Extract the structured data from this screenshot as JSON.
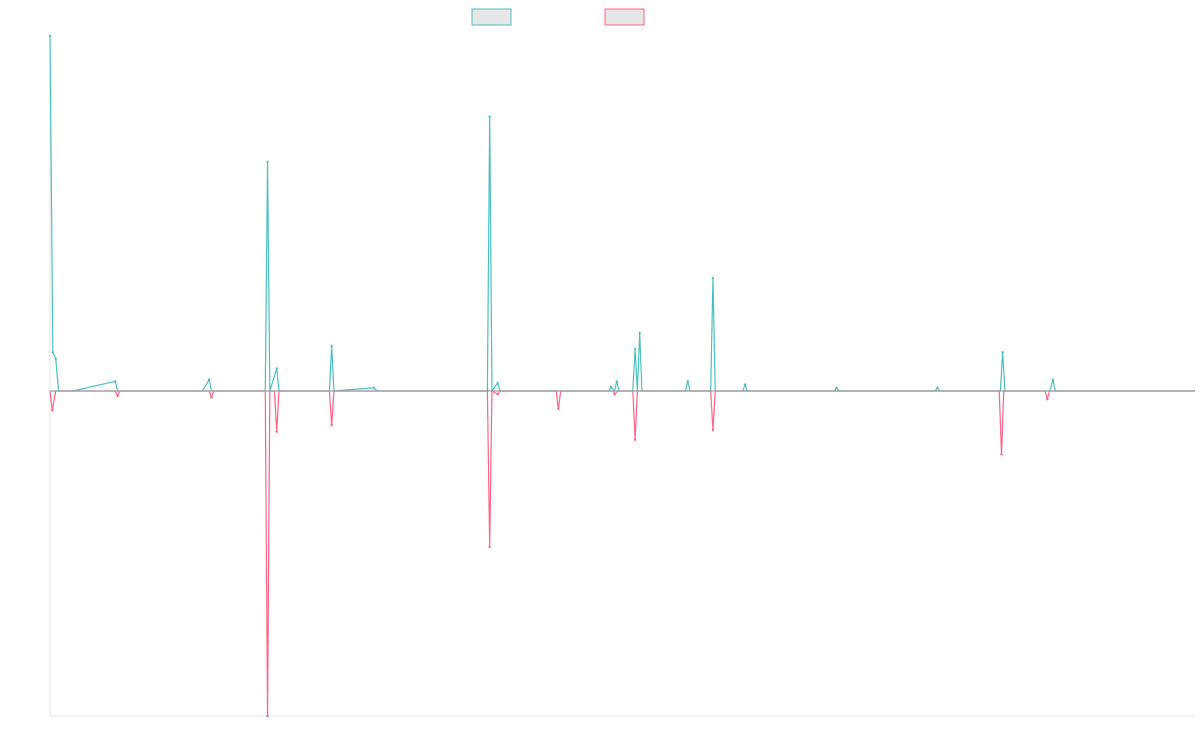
{
  "colors": {
    "series_1": "#4bc0c0",
    "series_2": "#ff6384",
    "legend_fill": "#e6e6e6",
    "axis": "#e5e5e5",
    "baseline": "#9aa0a6",
    "background": "#ffffff"
  },
  "legend": {
    "placement": "top-center",
    "items": [
      {
        "series_index": 0
      },
      {
        "series_index": 1
      }
    ]
  },
  "chart_data": {
    "type": "line",
    "title": "",
    "xlabel": "",
    "ylabel": "",
    "grid": false,
    "ticks_visible": false,
    "xlim": [
      0,
      100
    ],
    "ylim": [
      -100,
      100
    ],
    "series": [
      {
        "points": [
          [
            0,
            110
          ],
          [
            0.25,
            12
          ],
          [
            0.5,
            10
          ],
          [
            0.75,
            0
          ],
          [
            2,
            0
          ],
          [
            5.7,
            3
          ],
          [
            5.9,
            0
          ],
          [
            13.3,
            0
          ],
          [
            13.9,
            3.5
          ],
          [
            14.1,
            0
          ],
          [
            18.8,
            0
          ],
          [
            19.0,
            71
          ],
          [
            19.2,
            0
          ],
          [
            19.8,
            7
          ],
          [
            20.0,
            0
          ],
          [
            24.4,
            0
          ],
          [
            24.6,
            14
          ],
          [
            24.8,
            0
          ],
          [
            28.3,
            1
          ],
          [
            28.6,
            0
          ],
          [
            38.2,
            0
          ],
          [
            38.4,
            85
          ],
          [
            38.6,
            0
          ],
          [
            39.1,
            2.5
          ],
          [
            39.3,
            0
          ],
          [
            48.8,
            0
          ],
          [
            49.0,
            1.2
          ],
          [
            49.3,
            0
          ],
          [
            49.5,
            3
          ],
          [
            49.7,
            0
          ],
          [
            50.9,
            0
          ],
          [
            51.1,
            13
          ],
          [
            51.3,
            0
          ],
          [
            51.5,
            18
          ],
          [
            51.7,
            0
          ],
          [
            55.5,
            0
          ],
          [
            55.7,
            3
          ],
          [
            55.9,
            0
          ],
          [
            57.7,
            0
          ],
          [
            57.9,
            35
          ],
          [
            58.1,
            0
          ],
          [
            60.5,
            0
          ],
          [
            60.7,
            2
          ],
          [
            60.9,
            0
          ],
          [
            68.5,
            0
          ],
          [
            68.7,
            1
          ],
          [
            68.9,
            0
          ],
          [
            77.3,
            0
          ],
          [
            77.5,
            1
          ],
          [
            77.7,
            0
          ],
          [
            83.0,
            0
          ],
          [
            83.2,
            12
          ],
          [
            83.4,
            0
          ],
          [
            87.3,
            0
          ],
          [
            87.6,
            3.5
          ],
          [
            87.8,
            0
          ],
          [
            100,
            0
          ]
        ]
      },
      {
        "points": [
          [
            0,
            0
          ],
          [
            0.2,
            -6
          ],
          [
            0.5,
            0
          ],
          [
            5.7,
            0
          ],
          [
            5.9,
            -1.5
          ],
          [
            6.1,
            0
          ],
          [
            13.9,
            0
          ],
          [
            14.1,
            -2
          ],
          [
            14.3,
            0
          ],
          [
            18.8,
            0
          ],
          [
            19.0,
            -100
          ],
          [
            19.2,
            0
          ],
          [
            19.6,
            0
          ],
          [
            19.8,
            -12.5
          ],
          [
            20.0,
            0
          ],
          [
            24.4,
            0
          ],
          [
            24.6,
            -10.5
          ],
          [
            24.8,
            0
          ],
          [
            38.2,
            0
          ],
          [
            38.4,
            -48
          ],
          [
            38.6,
            0
          ],
          [
            39.1,
            -1
          ],
          [
            39.3,
            0
          ],
          [
            44.2,
            0
          ],
          [
            44.4,
            -5.5
          ],
          [
            44.6,
            0
          ],
          [
            49.2,
            0
          ],
          [
            49.3,
            -1
          ],
          [
            49.6,
            0
          ],
          [
            50.9,
            0
          ],
          [
            51.1,
            -15
          ],
          [
            51.3,
            0
          ],
          [
            57.7,
            0
          ],
          [
            57.9,
            -12
          ],
          [
            58.1,
            0
          ],
          [
            82.9,
            0
          ],
          [
            83.1,
            -19.5
          ],
          [
            83.3,
            0
          ],
          [
            86.9,
            0
          ],
          [
            87.1,
            -2.5
          ],
          [
            87.3,
            0
          ],
          [
            100,
            0
          ]
        ]
      }
    ]
  }
}
